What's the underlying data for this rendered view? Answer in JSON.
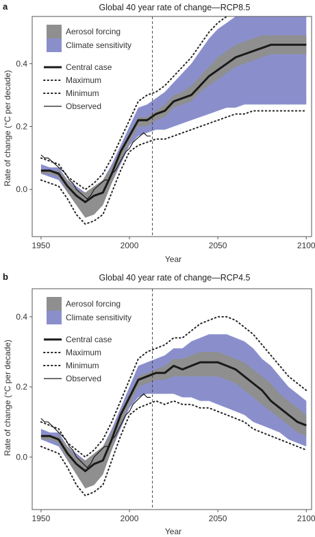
{
  "chart_data": [
    {
      "panel": "a",
      "type": "line",
      "title": "Global 40 year rate of change—RCP8.5",
      "xlabel": "Year",
      "ylabel": "Rate of change (°C per decade)",
      "xlim": [
        1945,
        2103
      ],
      "ylim": [
        -0.15,
        0.55
      ],
      "xticks": [
        1950,
        2000,
        2050,
        2100
      ],
      "yticks": [
        0.0,
        0.2,
        0.4
      ],
      "xtick_labels": [
        "1950",
        "2000",
        "2050",
        "2100"
      ],
      "ytick_labels": [
        "0.0",
        "0.2",
        "0.4"
      ],
      "vline_x": 2013,
      "legend": {
        "placement": "top-left",
        "aerosol_label": "Aerosol forcing",
        "climate_label": "Climate sensitivity",
        "central_label": "Central case",
        "max_label": "Maximum",
        "min_label": "Minimum",
        "observed_label": "Observed"
      },
      "colors": {
        "aerosol": "#8f8f8f",
        "climate": "#8a8fcc",
        "line": "#1a1a1a"
      },
      "x": [
        1950,
        1955,
        1960,
        1965,
        1970,
        1975,
        1980,
        1985,
        1990,
        1995,
        2000,
        2005,
        2010,
        2015,
        2020,
        2025,
        2030,
        2035,
        2040,
        2045,
        2050,
        2055,
        2060,
        2065,
        2070,
        2075,
        2080,
        2085,
        2090,
        2095,
        2100
      ],
      "series": [
        {
          "name": "Central case",
          "values": [
            0.06,
            0.06,
            0.05,
            0.01,
            -0.02,
            -0.04,
            -0.02,
            -0.01,
            0.05,
            0.12,
            0.17,
            0.22,
            0.22,
            0.24,
            0.25,
            0.28,
            0.29,
            0.3,
            0.33,
            0.36,
            0.38,
            0.4,
            0.42,
            0.43,
            0.44,
            0.45,
            0.46,
            0.46,
            0.46,
            0.46,
            0.46
          ]
        },
        {
          "name": "Maximum",
          "values": [
            0.1,
            0.09,
            0.08,
            0.04,
            0.02,
            0.0,
            0.02,
            0.05,
            0.1,
            0.16,
            0.22,
            0.28,
            0.3,
            0.31,
            0.33,
            0.36,
            0.39,
            0.42,
            0.46,
            0.5,
            0.53,
            0.55,
            0.57,
            0.59,
            0.6,
            0.61,
            0.62,
            0.63,
            0.63,
            0.63,
            0.63
          ]
        },
        {
          "name": "Minimum",
          "values": [
            0.03,
            0.02,
            0.01,
            -0.03,
            -0.08,
            -0.11,
            -0.1,
            -0.08,
            -0.01,
            0.06,
            0.12,
            0.14,
            0.15,
            0.16,
            0.16,
            0.17,
            0.18,
            0.19,
            0.2,
            0.21,
            0.22,
            0.23,
            0.24,
            0.24,
            0.25,
            0.25,
            0.25,
            0.25,
            0.25,
            0.25,
            0.25
          ]
        },
        {
          "name": "Climate sensitivity upper",
          "values": [
            0.08,
            0.07,
            0.07,
            0.03,
            0.01,
            -0.01,
            0.0,
            0.03,
            0.08,
            0.14,
            0.2,
            0.26,
            0.27,
            0.29,
            0.31,
            0.34,
            0.37,
            0.4,
            0.44,
            0.48,
            0.51,
            0.53,
            0.55,
            0.57,
            0.58,
            0.59,
            0.6,
            0.61,
            0.61,
            0.61,
            0.61
          ]
        },
        {
          "name": "Climate sensitivity lower",
          "values": [
            0.05,
            0.04,
            0.03,
            -0.01,
            -0.05,
            -0.07,
            -0.06,
            -0.04,
            0.02,
            0.08,
            0.14,
            0.17,
            0.18,
            0.19,
            0.19,
            0.2,
            0.21,
            0.22,
            0.23,
            0.24,
            0.25,
            0.26,
            0.26,
            0.27,
            0.27,
            0.27,
            0.27,
            0.27,
            0.27,
            0.27,
            0.27
          ]
        },
        {
          "name": "Aerosol upper",
          "values": [
            0.06,
            0.06,
            0.06,
            0.03,
            0.0,
            -0.01,
            0.01,
            0.03,
            0.07,
            0.13,
            0.18,
            0.23,
            0.23,
            0.25,
            0.27,
            0.3,
            0.31,
            0.33,
            0.36,
            0.39,
            0.42,
            0.44,
            0.46,
            0.47,
            0.48,
            0.49,
            0.49,
            0.49,
            0.49,
            0.49,
            0.49
          ]
        },
        {
          "name": "Aerosol lower",
          "values": [
            0.05,
            0.05,
            0.04,
            -0.01,
            -0.05,
            -0.09,
            -0.08,
            -0.05,
            0.02,
            0.09,
            0.15,
            0.2,
            0.2,
            0.22,
            0.23,
            0.26,
            0.27,
            0.28,
            0.31,
            0.33,
            0.35,
            0.37,
            0.39,
            0.4,
            0.41,
            0.42,
            0.43,
            0.43,
            0.43,
            0.43,
            0.43
          ]
        }
      ],
      "observed": {
        "x": [
          1950,
          1952,
          1954,
          1956,
          1958,
          1960,
          1962,
          1964,
          1966,
          1968,
          1970,
          1972,
          1974,
          1976,
          1978,
          1980,
          1982,
          1984,
          1986,
          1988,
          1990,
          1992,
          1994,
          1996,
          1998,
          2000,
          2002,
          2004,
          2006,
          2008,
          2010,
          2012
        ],
        "values": [
          0.11,
          0.1,
          0.1,
          0.09,
          0.08,
          0.07,
          0.06,
          0.05,
          0.03,
          0.02,
          0.0,
          -0.01,
          -0.02,
          -0.03,
          -0.02,
          0.0,
          0.01,
          0.02,
          0.03,
          0.03,
          0.05,
          0.06,
          0.08,
          0.1,
          0.12,
          0.13,
          0.15,
          0.16,
          0.17,
          0.18,
          0.17,
          0.17
        ]
      }
    },
    {
      "panel": "b",
      "type": "line",
      "title": "Global 40 year rate of change—RCP4.5",
      "xlabel": "Year",
      "ylabel": "Rate of change (°C per decade)",
      "xlim": [
        1945,
        2103
      ],
      "ylim": [
        -0.15,
        0.48
      ],
      "xticks": [
        1950,
        2000,
        2050,
        2100
      ],
      "yticks": [
        0.0,
        0.2,
        0.4
      ],
      "xtick_labels": [
        "1950",
        "2000",
        "2050",
        "2100"
      ],
      "ytick_labels": [
        "0.0",
        "0.2",
        "0.4"
      ],
      "vline_x": 2013,
      "legend": {
        "placement": "top-left",
        "aerosol_label": "Aerosol forcing",
        "climate_label": "Climate sensitivity",
        "central_label": "Central case",
        "max_label": "Maximum",
        "min_label": "Minimum",
        "observed_label": "Observed"
      },
      "colors": {
        "aerosol": "#8f8f8f",
        "climate": "#8a8fcc",
        "line": "#1a1a1a"
      },
      "x": [
        1950,
        1955,
        1960,
        1965,
        1970,
        1975,
        1980,
        1985,
        1990,
        1995,
        2000,
        2005,
        2010,
        2015,
        2020,
        2025,
        2030,
        2035,
        2040,
        2045,
        2050,
        2055,
        2060,
        2065,
        2070,
        2075,
        2080,
        2085,
        2090,
        2095,
        2100
      ],
      "series": [
        {
          "name": "Central case",
          "values": [
            0.06,
            0.06,
            0.05,
            0.01,
            -0.02,
            -0.04,
            -0.02,
            -0.01,
            0.05,
            0.12,
            0.17,
            0.22,
            0.23,
            0.24,
            0.24,
            0.26,
            0.25,
            0.26,
            0.27,
            0.27,
            0.27,
            0.26,
            0.25,
            0.23,
            0.21,
            0.19,
            0.16,
            0.14,
            0.12,
            0.1,
            0.09
          ]
        },
        {
          "name": "Maximum",
          "values": [
            0.1,
            0.09,
            0.08,
            0.04,
            0.02,
            0.0,
            0.02,
            0.05,
            0.1,
            0.16,
            0.22,
            0.28,
            0.3,
            0.31,
            0.32,
            0.34,
            0.34,
            0.36,
            0.38,
            0.39,
            0.4,
            0.4,
            0.39,
            0.37,
            0.35,
            0.32,
            0.29,
            0.26,
            0.23,
            0.21,
            0.19
          ]
        },
        {
          "name": "Minimum",
          "values": [
            0.03,
            0.02,
            0.01,
            -0.03,
            -0.08,
            -0.11,
            -0.1,
            -0.08,
            -0.01,
            0.06,
            0.12,
            0.14,
            0.15,
            0.16,
            0.15,
            0.16,
            0.15,
            0.15,
            0.14,
            0.14,
            0.13,
            0.12,
            0.11,
            0.1,
            0.08,
            0.07,
            0.06,
            0.05,
            0.04,
            0.03,
            0.02
          ]
        },
        {
          "name": "Climate sensitivity upper",
          "values": [
            0.08,
            0.07,
            0.07,
            0.03,
            0.01,
            -0.01,
            0.0,
            0.03,
            0.08,
            0.14,
            0.2,
            0.26,
            0.27,
            0.28,
            0.29,
            0.31,
            0.31,
            0.33,
            0.34,
            0.35,
            0.35,
            0.35,
            0.34,
            0.33,
            0.31,
            0.28,
            0.26,
            0.23,
            0.2,
            0.18,
            0.16
          ]
        },
        {
          "name": "Climate sensitivity lower",
          "values": [
            0.05,
            0.04,
            0.03,
            -0.01,
            -0.05,
            -0.07,
            -0.06,
            -0.04,
            0.02,
            0.08,
            0.14,
            0.17,
            0.18,
            0.18,
            0.18,
            0.18,
            0.17,
            0.17,
            0.16,
            0.16,
            0.15,
            0.14,
            0.13,
            0.12,
            0.1,
            0.09,
            0.08,
            0.07,
            0.05,
            0.04,
            0.03
          ]
        },
        {
          "name": "Aerosol upper",
          "values": [
            0.06,
            0.06,
            0.06,
            0.03,
            0.0,
            -0.01,
            0.01,
            0.03,
            0.07,
            0.13,
            0.18,
            0.23,
            0.24,
            0.25,
            0.26,
            0.28,
            0.28,
            0.29,
            0.3,
            0.3,
            0.3,
            0.29,
            0.28,
            0.27,
            0.25,
            0.23,
            0.21,
            0.18,
            0.16,
            0.14,
            0.12
          ]
        },
        {
          "name": "Aerosol lower",
          "values": [
            0.05,
            0.05,
            0.04,
            -0.01,
            -0.05,
            -0.09,
            -0.08,
            -0.05,
            0.02,
            0.09,
            0.15,
            0.2,
            0.21,
            0.22,
            0.22,
            0.23,
            0.23,
            0.23,
            0.23,
            0.23,
            0.23,
            0.22,
            0.21,
            0.19,
            0.17,
            0.15,
            0.13,
            0.11,
            0.09,
            0.07,
            0.06
          ]
        }
      ],
      "observed": {
        "x": [
          1950,
          1952,
          1954,
          1956,
          1958,
          1960,
          1962,
          1964,
          1966,
          1968,
          1970,
          1972,
          1974,
          1976,
          1978,
          1980,
          1982,
          1984,
          1986,
          1988,
          1990,
          1992,
          1994,
          1996,
          1998,
          2000,
          2002,
          2004,
          2006,
          2008,
          2010,
          2012
        ],
        "values": [
          0.11,
          0.1,
          0.1,
          0.09,
          0.08,
          0.07,
          0.06,
          0.05,
          0.03,
          0.02,
          0.0,
          -0.01,
          -0.02,
          -0.03,
          -0.02,
          0.0,
          0.01,
          0.02,
          0.03,
          0.03,
          0.05,
          0.06,
          0.08,
          0.1,
          0.12,
          0.13,
          0.15,
          0.16,
          0.17,
          0.18,
          0.17,
          0.17
        ]
      }
    }
  ]
}
